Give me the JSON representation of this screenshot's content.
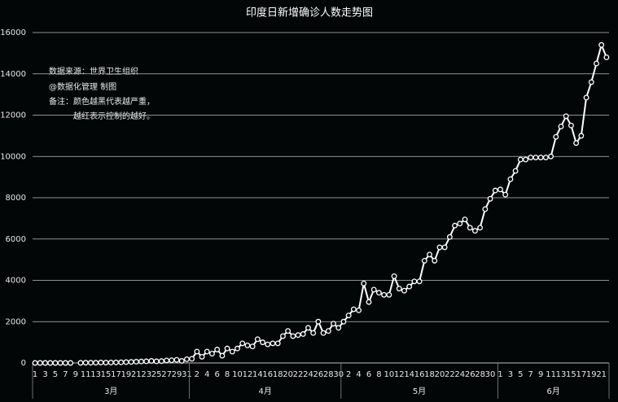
{
  "chart_data": {
    "type": "line",
    "title": "印度日新增确诊人数走势图",
    "annotations": [
      "数据来源：世界卫生组织",
      "@数据化管理 制图",
      "备注：颜色越黑代表越严重，",
      "越红表示控制的越好。"
    ],
    "groups": [
      {
        "label": "3月",
        "categories": [
          "1",
          null,
          "3",
          null,
          "5",
          null,
          "7",
          null,
          "9",
          null,
          "11",
          null,
          "13",
          null,
          "15",
          null,
          "17",
          null,
          "19",
          null,
          "21",
          null,
          "23",
          null,
          "25",
          null,
          "27",
          null,
          "29",
          null,
          "31"
        ]
      },
      {
        "label": "4月",
        "categories": [
          null,
          "2",
          null,
          "4",
          null,
          "6",
          null,
          "8",
          null,
          "10",
          null,
          "12",
          null,
          "14",
          null,
          "16",
          null,
          "18",
          null,
          "20",
          null,
          "22",
          null,
          "24",
          null,
          "26",
          null,
          "28",
          null,
          "30"
        ]
      },
      {
        "label": "5月",
        "categories": [
          null,
          "2",
          null,
          "4",
          null,
          "6",
          null,
          "8",
          null,
          "10",
          null,
          "12",
          null,
          "14",
          null,
          "16",
          null,
          "18",
          null,
          "20",
          null,
          "22",
          null,
          "24",
          null,
          "26",
          null,
          "28",
          null,
          "30",
          null
        ]
      },
      {
        "label": "6月",
        "categories": [
          "1",
          null,
          "3",
          null,
          "5",
          null,
          "7",
          null,
          "9",
          null,
          "11",
          null,
          "13",
          null,
          "15",
          null,
          "17",
          null,
          "19",
          null,
          "21",
          null
        ]
      }
    ],
    "values": [
      0,
      0,
      0,
      0,
      0,
      0,
      0,
      0,
      null,
      5,
      10,
      10,
      10,
      20,
      15,
      20,
      25,
      30,
      40,
      50,
      60,
      70,
      80,
      100,
      80,
      90,
      120,
      130,
      150,
      100,
      180,
      200,
      550,
      300,
      550,
      450,
      650,
      350,
      700,
      550,
      700,
      950,
      850,
      800,
      1150,
      1000,
      900,
      950,
      950,
      1300,
      1550,
      1300,
      1350,
      1400,
      1700,
      1450,
      2000,
      1450,
      1550,
      1900,
      1700,
      2000,
      2300,
      2600,
      2550,
      3850,
      2950,
      3550,
      3400,
      3300,
      3300,
      4200,
      3600,
      3500,
      3700,
      3950,
      3950,
      4950,
      5250,
      4950,
      5600,
      5600,
      6100,
      6650,
      6750,
      6950,
      6550,
      6400,
      6550,
      7450,
      7950,
      8350,
      8400,
      8150,
      8900,
      9300,
      9850,
      9850,
      9950,
      9950,
      9950,
      9950,
      10000,
      10950,
      11450,
      11950,
      11500,
      10650,
      11000,
      12850,
      13600,
      14500,
      15400,
      14800
    ],
    "color": "#ffffff",
    "ylim": [
      0,
      16000
    ],
    "yticks": [
      0,
      2000,
      4000,
      6000,
      8000,
      10000,
      12000,
      14000,
      16000
    ],
    "grid": true
  }
}
